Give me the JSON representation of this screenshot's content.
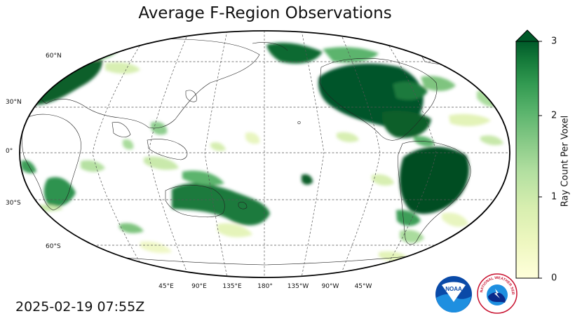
{
  "title": "Average F-Region Observations",
  "timestamp": "2025-02-19 07:55Z",
  "colorbar": {
    "label": "Ray Count Per Voxel",
    "min": 0,
    "max": 3,
    "extend": "max",
    "ticks": [
      "0",
      "1",
      "2",
      "3"
    ],
    "colors": [
      "#ffffdb",
      "#eef7c0",
      "#d7eeaf",
      "#b2dfa0",
      "#86c986",
      "#5bb46d",
      "#329a51",
      "#157a3a",
      "#005a29"
    ]
  },
  "map": {
    "projection": "Robinson",
    "central_longitude": 180,
    "grid": true,
    "latitude_labels": [
      "60°N",
      "30°N",
      "0°",
      "30°S",
      "60°S"
    ],
    "longitude_labels": [
      "45°E",
      "90°E",
      "135°E",
      "180°",
      "135°W",
      "90°W",
      "45°W"
    ]
  },
  "logos": {
    "noaa_text": "NOAA",
    "nws_text": "NATIONAL WEATHER SERVICE"
  }
}
